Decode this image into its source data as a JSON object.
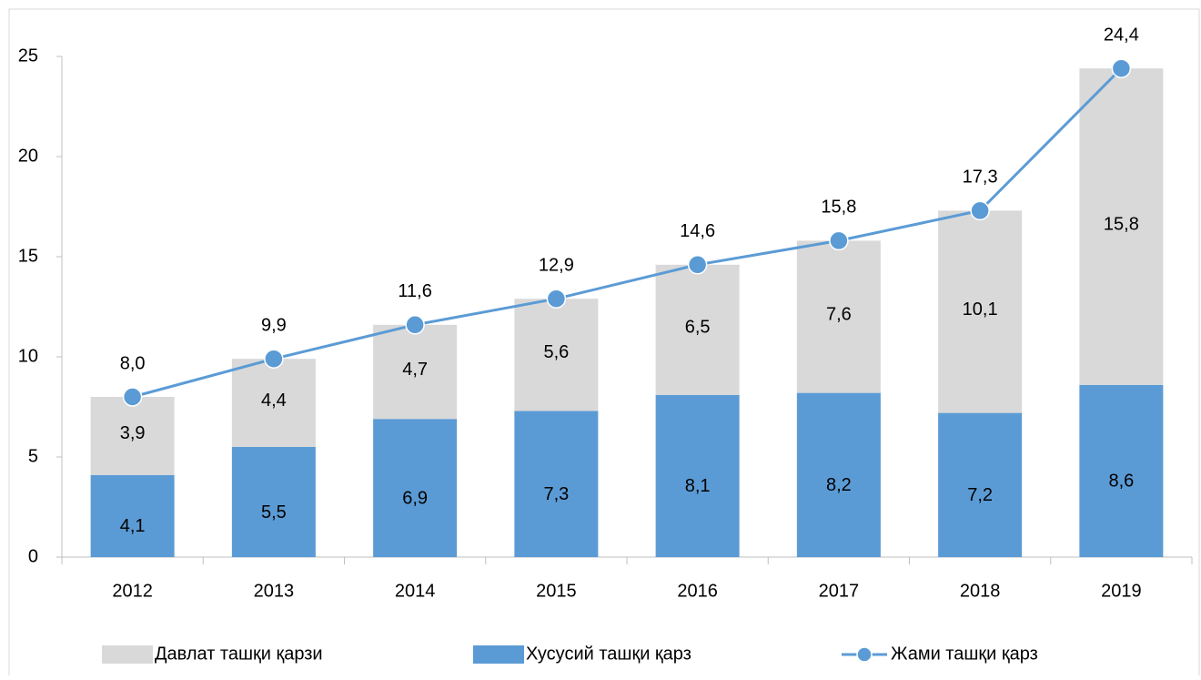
{
  "chart_data": {
    "type": "bar",
    "categories": [
      "2012",
      "2013",
      "2014",
      "2015",
      "2016",
      "2017",
      "2018",
      "2019"
    ],
    "series": [
      {
        "name": "Давлат ташқи қарзи",
        "type": "bar",
        "color": "#d9d9d9",
        "values": [
          3.9,
          4.4,
          4.7,
          5.6,
          6.5,
          7.6,
          10.1,
          15.8
        ],
        "value_labels": [
          "3,9",
          "4,4",
          "4,7",
          "5,6",
          "6,5",
          "7,6",
          "10,1",
          "15,8"
        ]
      },
      {
        "name": "Хусусий ташқи қарз",
        "type": "bar",
        "color": "#5b9bd5",
        "values": [
          4.1,
          5.5,
          6.9,
          7.3,
          8.1,
          8.2,
          7.2,
          8.6
        ],
        "value_labels": [
          "4,1",
          "5,5",
          "6,9",
          "7,3",
          "8,1",
          "8,2",
          "7,2",
          "8,6"
        ]
      },
      {
        "name": "Жами ташқи қарз",
        "type": "line",
        "color": "#5b9bd5",
        "values": [
          8.0,
          9.9,
          11.6,
          12.9,
          14.6,
          15.8,
          17.3,
          24.4
        ],
        "value_labels": [
          "8,0",
          "9,9",
          "11,6",
          "12,9",
          "14,6",
          "15,8",
          "17,3",
          "24,4"
        ]
      }
    ],
    "ylim": [
      0,
      25
    ],
    "yticks": [
      0,
      5,
      10,
      15,
      20,
      25
    ],
    "grid": false,
    "legend": "bottom"
  }
}
